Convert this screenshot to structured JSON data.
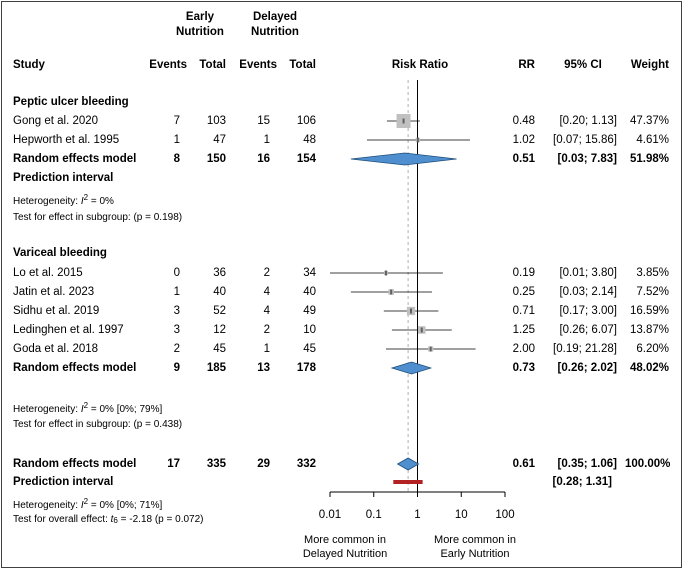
{
  "header": {
    "early_group": "Early\nNutrition",
    "delayed_group": "Delayed\nNutrition",
    "study": "Study",
    "events_early": "Events",
    "total_early": "Total",
    "events_delayed": "Events",
    "total_delayed": "Total",
    "plot_label": "Risk Ratio",
    "rr": "RR",
    "ci": "95% CI",
    "weight": "Weight"
  },
  "subgroups": [
    {
      "title": "Peptic ulcer bleeding",
      "studies": [
        {
          "study": "Gong et al. 2020",
          "ee": "7",
          "te": "103",
          "ed": "15",
          "td": "106",
          "rr": "0.48",
          "ci": "[0.20; 1.13]",
          "weight": "47.37%"
        },
        {
          "study": "Hepworth et al. 1995",
          "ee": "1",
          "te": "47",
          "ed": "1",
          "td": "48",
          "rr": "1.02",
          "ci": "[0.07; 15.86]",
          "weight": "4.61%"
        }
      ],
      "model": {
        "study": "Random effects model",
        "ee": "8",
        "te": "150",
        "ed": "16",
        "td": "154",
        "rr": "0.51",
        "ci": "[0.03; 7.83]",
        "weight": "51.98%"
      },
      "prediction": "Prediction interval",
      "het_prefix": "Heterogeneity: ",
      "het_i2": "I",
      "het_value": " = 0%",
      "test_prefix": "Test for effect in subgroup: ",
      "test_p": "(p = 0.198)"
    },
    {
      "title": "Variceal bleeding",
      "studies": [
        {
          "study": "Lo et al. 2015",
          "ee": "0",
          "te": "36",
          "ed": "2",
          "td": "34",
          "rr": "0.19",
          "ci": "[0.01; 3.80]",
          "weight": "3.85%"
        },
        {
          "study": "Jatin et al. 2023",
          "ee": "1",
          "te": "40",
          "ed": "4",
          "td": "40",
          "rr": "0.25",
          "ci": "[0.03; 2.14]",
          "weight": "7.52%"
        },
        {
          "study": "Sidhu et al. 2019",
          "ee": "3",
          "te": "52",
          "ed": "4",
          "td": "49",
          "rr": "0.71",
          "ci": "[0.17; 3.00]",
          "weight": "16.59%"
        },
        {
          "study": "Ledinghen et al. 1997",
          "ee": "3",
          "te": "12",
          "ed": "2",
          "td": "10",
          "rr": "1.25",
          "ci": "[0.26; 6.07]",
          "weight": "13.87%"
        },
        {
          "study": "Goda et al. 2018",
          "ee": "2",
          "te": "45",
          "ed": "1",
          "td": "45",
          "rr": "2.00",
          "ci": "[0.19; 21.28]",
          "weight": "6.20%"
        }
      ],
      "model": {
        "study": "Random effects model",
        "ee": "9",
        "te": "185",
        "ed": "13",
        "td": "178",
        "rr": "0.73",
        "ci": "[0.26; 2.02]",
        "weight": "48.02%"
      },
      "het_prefix": "Heterogeneity: ",
      "het_i2": "I",
      "het_value": " = 0% [0%; 79%]",
      "test_prefix": "Test for effect in subgroup: ",
      "test_p": "(p = 0.438)"
    }
  ],
  "overall": {
    "model": {
      "study": "Random effects model",
      "ee": "17",
      "te": "335",
      "ed": "29",
      "td": "332",
      "rr": "0.61",
      "ci": "[0.35; 1.06]",
      "weight": "100.00%"
    },
    "prediction": "Prediction interval",
    "prediction_ci": "[0.28; 1.31]",
    "het_prefix": "Heterogeneity: ",
    "het_i2": "I",
    "het_value": " = 0% [0%; 71%]",
    "test_prefix": "Test for overall effect: ",
    "test_t": "t",
    "test_df": "6",
    "test_value": " = -2.18 (p = 0.072)"
  },
  "axis": {
    "ticks": [
      "0.01",
      "0.1",
      "1",
      "10",
      "100"
    ],
    "left_label": "More common in\nDelayed Nutrition",
    "right_label": "More common in\nEarly Nutrition"
  },
  "colors": {
    "square": "#c0c0c0",
    "diamond": "#4f8fcf",
    "prediction": "#b22222",
    "ref_dash": "#b0b0b0"
  },
  "chart_data": {
    "type": "forest",
    "xscale": "log",
    "xlim": [
      0.01,
      100
    ],
    "xlabel": "Risk Ratio",
    "null_value": 1,
    "studies": [
      {
        "name": "Gong et al. 2020",
        "rr": 0.48,
        "lo": 0.2,
        "hi": 1.13,
        "weight": 47.37
      },
      {
        "name": "Hepworth et al. 1995",
        "rr": 1.02,
        "lo": 0.07,
        "hi": 15.86,
        "weight": 4.61
      },
      {
        "name": "Lo et al. 2015",
        "rr": 0.19,
        "lo": 0.01,
        "hi": 3.8,
        "weight": 3.85
      },
      {
        "name": "Jatin et al. 2023",
        "rr": 0.25,
        "lo": 0.03,
        "hi": 2.14,
        "weight": 7.52
      },
      {
        "name": "Sidhu et al. 2019",
        "rr": 0.71,
        "lo": 0.17,
        "hi": 3.0,
        "weight": 16.59
      },
      {
        "name": "Ledinghen et al. 1997",
        "rr": 1.25,
        "lo": 0.26,
        "hi": 6.07,
        "weight": 13.87
      },
      {
        "name": "Goda et al. 2018",
        "rr": 2.0,
        "lo": 0.19,
        "hi": 21.28,
        "weight": 6.2
      }
    ],
    "pooled": [
      {
        "name": "Peptic ulcer bleeding",
        "rr": 0.51,
        "lo": 0.03,
        "hi": 7.83
      },
      {
        "name": "Variceal bleeding",
        "rr": 0.73,
        "lo": 0.26,
        "hi": 2.02
      },
      {
        "name": "Overall",
        "rr": 0.61,
        "lo": 0.35,
        "hi": 1.06
      }
    ],
    "prediction_interval": {
      "lo": 0.28,
      "hi": 1.31
    }
  }
}
